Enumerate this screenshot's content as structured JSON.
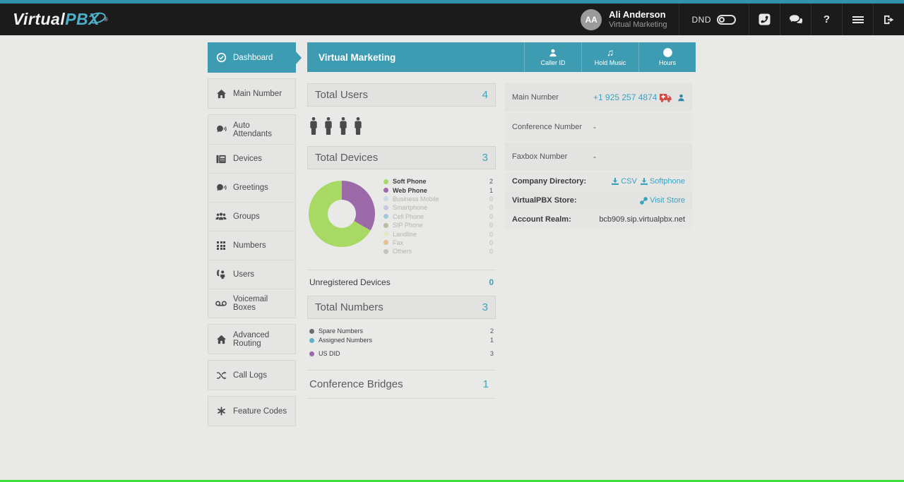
{
  "header": {
    "brand": {
      "word_white": "Virtual",
      "word_teal": "PBX",
      "registered": "®"
    },
    "user": {
      "initials": "AA",
      "name": "Ali Anderson",
      "org": "Virtual Marketing"
    },
    "dnd_label": "DND",
    "help_glyph": "?"
  },
  "sidebar": {
    "items": [
      {
        "label": "Dashboard"
      },
      {
        "label": "Main Number"
      },
      {
        "label": "Auto Attendants"
      },
      {
        "label": "Devices"
      },
      {
        "label": "Greetings"
      },
      {
        "label": "Groups"
      },
      {
        "label": "Numbers"
      },
      {
        "label": "Users"
      },
      {
        "label": "Voicemail Boxes"
      },
      {
        "label": "Advanced Routing"
      },
      {
        "label": "Call Logs"
      },
      {
        "label": "Feature Codes"
      }
    ]
  },
  "main": {
    "title": "Virtual Marketing",
    "actions": [
      {
        "label": "Caller ID"
      },
      {
        "label": "Hold Music"
      },
      {
        "label": "Hours"
      }
    ],
    "total_users": {
      "label": "Total Users",
      "value": "4"
    },
    "total_devices": {
      "label": "Total Devices",
      "value": "3"
    },
    "unregistered": {
      "label": "Unregistered Devices",
      "value": "0"
    },
    "total_numbers": {
      "label": "Total Numbers",
      "value": "3"
    },
    "conference_bridges": {
      "label": "Conference Bridges",
      "value": "1"
    }
  },
  "chart_data": {
    "type": "pie",
    "title": "Total Devices",
    "categories": [
      "Soft Phone",
      "Web Phone",
      "Business Mobile",
      "Smartphone",
      "Cell Phone",
      "SIP Phone",
      "Landline",
      "Fax",
      "Others"
    ],
    "values": [
      2,
      1,
      0,
      0,
      0,
      0,
      0,
      0,
      0
    ],
    "colors": [
      "#a7d964",
      "#9c6aa8",
      "#aad4e4",
      "#a9a9de",
      "#66aed2",
      "#909a60",
      "#e4e4ae",
      "#dfa152",
      "#a3a3a3"
    ],
    "rotation_deg": 120,
    "legend_position": "right",
    "donut": true
  },
  "numbers_legend": [
    {
      "label": "Spare Numbers",
      "value": 2,
      "color": "#6e6e6e"
    },
    {
      "label": "Assigned Numbers",
      "value": 1,
      "color": "#5cb5c5"
    },
    {
      "label": "US DID",
      "value": 3,
      "color": "#9c6aa8"
    }
  ],
  "info": {
    "main_number": {
      "label": "Main Number",
      "value": "+1 925 257 4874"
    },
    "conference_number": {
      "label": "Conference Number",
      "value": "-"
    },
    "faxbox_number": {
      "label": "Faxbox Number",
      "value": "-"
    },
    "company_directory": {
      "label": "Company Directory:",
      "csv_link": "CSV",
      "softphone_link": "Softphone"
    },
    "store": {
      "label": "VirtualPBX Store:",
      "link": "Visit Store"
    },
    "account_realm": {
      "label": "Account Realm:",
      "value": "bcb909.sip.virtualpbx.net"
    }
  }
}
